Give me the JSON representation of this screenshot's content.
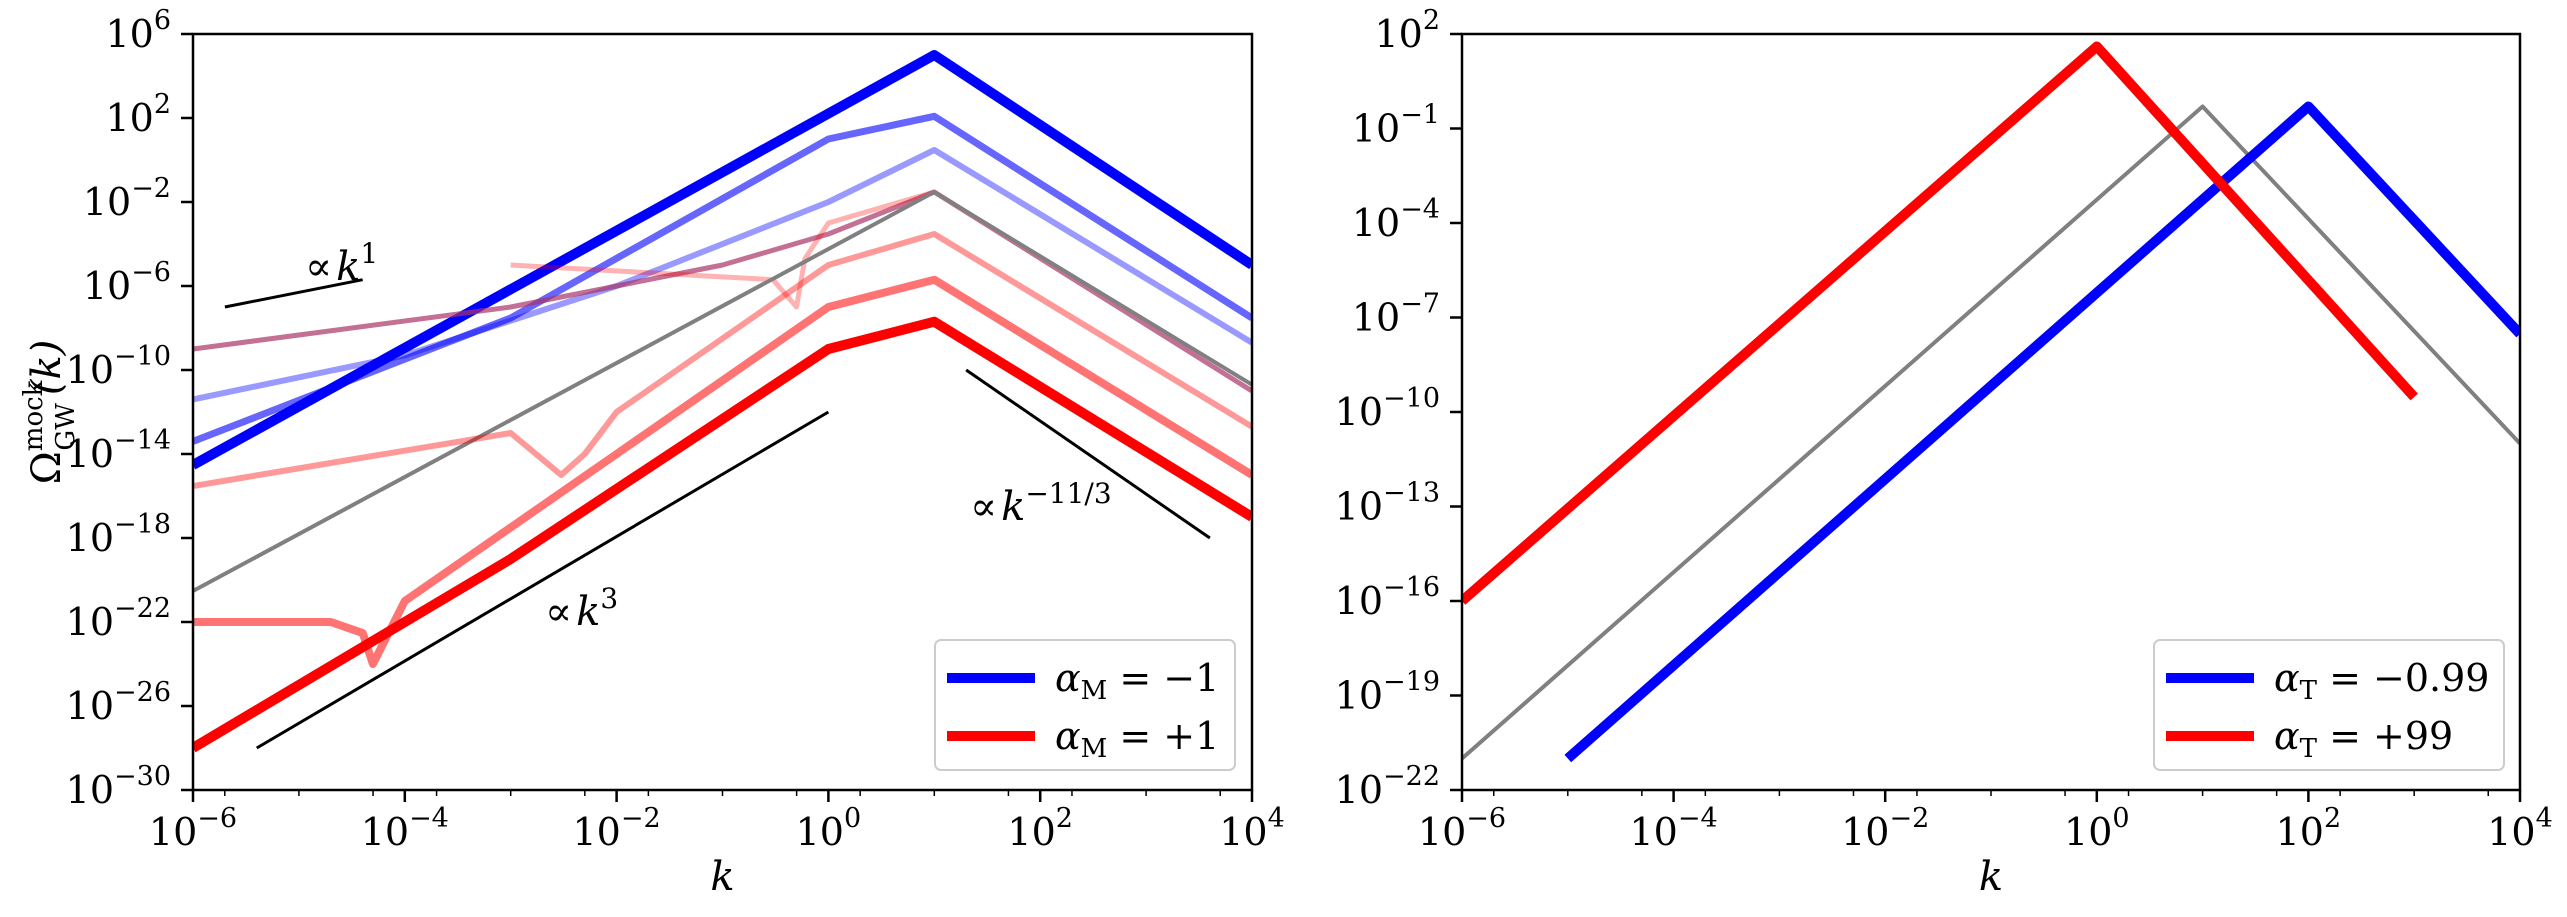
{
  "chart_data": [
    {
      "type": "line",
      "x_scale": "log",
      "y_scale": "log",
      "xlim": [
        1e-06,
        10000.0
      ],
      "ylim": [
        1e-30,
        1000000.0
      ],
      "xlabel": "k",
      "ylabel": {
        "base": "Ω",
        "sup": "mock",
        "sub": "GW",
        "arg": "(k)"
      },
      "x_ticks": [
        {
          "base": "10",
          "exp": "−6"
        },
        {
          "base": "10",
          "exp": "−4"
        },
        {
          "base": "10",
          "exp": "−2"
        },
        {
          "base": "10",
          "exp": "0"
        },
        {
          "base": "10",
          "exp": "2"
        },
        {
          "base": "10",
          "exp": "4"
        }
      ],
      "y_ticks": [
        {
          "base": "10",
          "exp": "−30"
        },
        {
          "base": "10",
          "exp": "−26"
        },
        {
          "base": "10",
          "exp": "−22"
        },
        {
          "base": "10",
          "exp": "−18"
        },
        {
          "base": "10",
          "exp": "−14"
        },
        {
          "base": "10",
          "exp": "−10"
        },
        {
          "base": "10",
          "exp": "−6"
        },
        {
          "base": "10",
          "exp": "−2"
        },
        {
          "base": "10",
          "exp": "2"
        },
        {
          "base": "10",
          "exp": "6"
        }
      ],
      "legend_position": "lower-right",
      "legend": [
        {
          "color": "#0000ff",
          "prefix": "α",
          "sub": "M",
          "value": " = −1"
        },
        {
          "color": "#ff0000",
          "prefix": "α",
          "sub": "M",
          "value": " = +1"
        }
      ],
      "series": [
        {
          "color": "#0000ff",
          "opacity": 1.0,
          "width": 10,
          "x": [
            1e-06,
            10,
            10000.0
          ],
          "y": [
            3e-15,
            100000.0,
            1e-05
          ]
        },
        {
          "color": "#0000ff",
          "opacity": 0.6,
          "width": 7,
          "x": [
            1e-06,
            0.001,
            1,
            10,
            10000.0
          ],
          "y": [
            4e-14,
            3e-08,
            10,
            120,
            3e-08
          ]
        },
        {
          "color": "#0000ff",
          "opacity": 0.4,
          "width": 6,
          "x": [
            1e-06,
            0.0001,
            0.01,
            1,
            10,
            10000.0
          ],
          "y": [
            4e-12,
            5e-10,
            1e-06,
            0.01,
            3,
            2e-09
          ]
        },
        {
          "color": "#aa3366",
          "opacity": 0.7,
          "width": 5,
          "x": [
            1e-06,
            0.001,
            0.1,
            1,
            10,
            10000.0
          ],
          "y": [
            1e-09,
            1e-07,
            1e-05,
            0.0003,
            0.03,
            1e-11
          ]
        },
        {
          "color": "#ff0000",
          "opacity": 0.3,
          "width": 5,
          "x": [
            0.001,
            0.3,
            0.5,
            0.6,
            1,
            10
          ],
          "y": [
            1e-05,
            2e-06,
            1e-07,
            2e-05,
            0.001,
            0.03
          ]
        },
        {
          "color": "#808080",
          "opacity": 1.0,
          "width": 4,
          "x": [
            1e-06,
            10,
            10000.0
          ],
          "y": [
            3e-21,
            0.03,
            2e-11
          ]
        },
        {
          "color": "#ff0000",
          "opacity": 0.4,
          "width": 6,
          "x": [
            1e-06,
            0.001,
            0.003,
            0.005,
            0.01,
            1,
            10,
            10000.0
          ],
          "y": [
            3e-16,
            1e-13,
            1e-15,
            1e-14,
            1e-12,
            1e-05,
            0.0003,
            2e-13
          ]
        },
        {
          "color": "#ff0000",
          "opacity": 0.55,
          "width": 8,
          "x": [
            1e-06,
            2e-05,
            4e-05,
            5e-05,
            0.0001,
            0.01,
            1,
            10,
            10000.0
          ],
          "y": [
            1e-22,
            1e-22,
            3e-23,
            1e-24,
            1e-21,
            1e-14,
            1e-07,
            2e-06,
            1e-15
          ]
        },
        {
          "color": "#ff0000",
          "opacity": 1.0,
          "width": 10,
          "x": [
            1e-06,
            0.001,
            1,
            10,
            10000.0
          ],
          "y": [
            1e-28,
            1e-19,
            1e-09,
            2e-08,
            1e-17
          ]
        }
      ],
      "guide_lines": [
        {
          "label": {
            "text": "∝",
            "var": "k",
            "sup": "1"
          },
          "x": [
            2e-06,
            4e-05
          ],
          "y": [
            1e-07,
            2e-06
          ]
        },
        {
          "label": {
            "text": "∝",
            "var": "k",
            "sup": "3"
          },
          "x": [
            4e-06,
            1
          ],
          "y": [
            1e-28,
            1e-12
          ]
        },
        {
          "label": {
            "text": "∝",
            "var": "k",
            "sup": "−11/3"
          },
          "x": [
            20,
            4000
          ],
          "y": [
            1e-10,
            1e-18
          ]
        }
      ]
    },
    {
      "type": "line",
      "x_scale": "log",
      "y_scale": "log",
      "xlim": [
        1e-06,
        10000.0
      ],
      "ylim": [
        1e-22,
        100.0
      ],
      "xlabel": "k",
      "x_ticks": [
        {
          "base": "10",
          "exp": "−6"
        },
        {
          "base": "10",
          "exp": "−4"
        },
        {
          "base": "10",
          "exp": "−2"
        },
        {
          "base": "10",
          "exp": "0"
        },
        {
          "base": "10",
          "exp": "2"
        },
        {
          "base": "10",
          "exp": "4"
        }
      ],
      "y_ticks": [
        {
          "base": "10",
          "exp": "−22"
        },
        {
          "base": "10",
          "exp": "−19"
        },
        {
          "base": "10",
          "exp": "−16"
        },
        {
          "base": "10",
          "exp": "−13"
        },
        {
          "base": "10",
          "exp": "−10"
        },
        {
          "base": "10",
          "exp": "−7"
        },
        {
          "base": "10",
          "exp": "−4"
        },
        {
          "base": "10",
          "exp": "−1"
        },
        {
          "base": "10",
          "exp": "2"
        }
      ],
      "legend_position": "lower-right",
      "legend": [
        {
          "color": "#0000ff",
          "prefix": "α",
          "sub": "T",
          "value": " = −0.99"
        },
        {
          "color": "#ff0000",
          "prefix": "α",
          "sub": "T",
          "value": " = +99"
        }
      ],
      "series": [
        {
          "color": "#808080",
          "opacity": 1.0,
          "width": 4,
          "x": [
            1e-06,
            10,
            10000.0
          ],
          "y": [
            1e-21,
            0.5,
            1e-11
          ]
        },
        {
          "color": "#0000ff",
          "opacity": 1.0,
          "width": 10,
          "x": [
            1e-05,
            100,
            10000.0
          ],
          "y": [
            1e-21,
            0.5,
            3e-08
          ]
        },
        {
          "color": "#ff0000",
          "opacity": 1.0,
          "width": 10,
          "x": [
            1e-06,
            1,
            1000
          ],
          "y": [
            1e-16,
            40,
            3e-10
          ]
        }
      ]
    }
  ]
}
